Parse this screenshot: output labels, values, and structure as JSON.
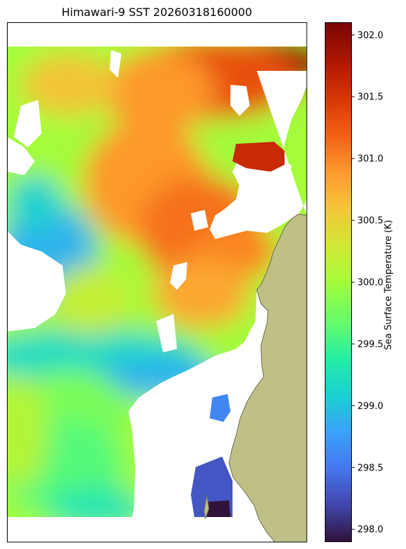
{
  "chart_data": {
    "type": "heatmap",
    "title": "Himawari-9 SST 20260318160000",
    "colorbar": {
      "label": "Sea Surface Temperature (K)",
      "range": [
        297.9,
        302.1
      ],
      "ticks": [
        "298.0",
        "298.5",
        "299.0",
        "299.5",
        "300.0",
        "300.5",
        "301.0",
        "301.5",
        "302.0"
      ],
      "tick_values": [
        298.0,
        298.5,
        299.0,
        299.5,
        300.0,
        300.5,
        301.0,
        301.5,
        302.0
      ],
      "colormap": "turbo"
    },
    "field_description_values": {
      "northeast_max": 302.0,
      "central_band": 301.0,
      "west_central": 300.0,
      "west_cool_patch": 298.9,
      "south_min": 297.9
    },
    "missing_data_color": "#ffffff",
    "land_color": "#bfc086",
    "land_edge_color": "#6b6b50",
    "grid": false
  }
}
